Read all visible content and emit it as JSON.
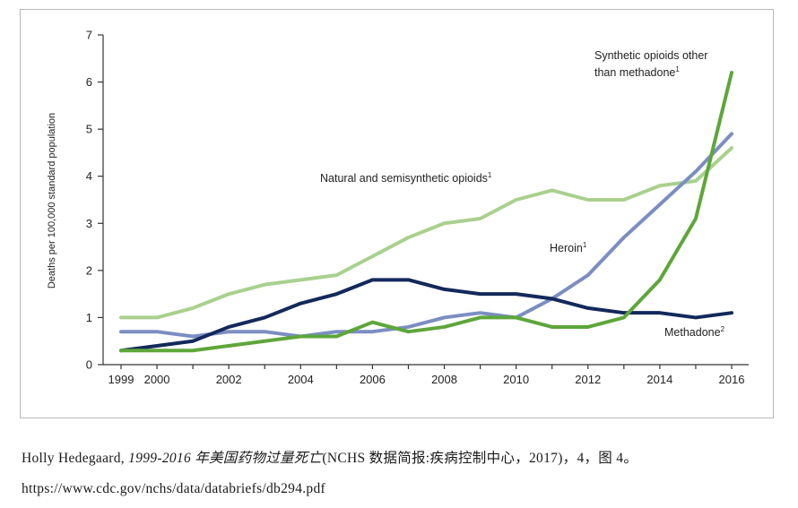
{
  "chart_data": {
    "type": "line",
    "ylabel": "Deaths per 100,000 standard population",
    "xlabel": "",
    "ylim": [
      0,
      7
    ],
    "xlim": [
      1999,
      2016
    ],
    "yticks": [
      0,
      1,
      2,
      3,
      4,
      5,
      6,
      7
    ],
    "ytick_labels": [
      "0",
      "1",
      "2",
      "3",
      "4",
      "5",
      "6",
      "7"
    ],
    "xtick_labels": [
      "1999",
      "2000",
      "2002",
      "2004",
      "2006",
      "2008",
      "2010",
      "2012",
      "2014",
      "2016"
    ],
    "xtick_values": [
      1999,
      2000,
      2002,
      2004,
      2006,
      2008,
      2010,
      2012,
      2014,
      2016
    ],
    "x": [
      1999,
      2000,
      2001,
      2002,
      2003,
      2004,
      2005,
      2006,
      2007,
      2008,
      2009,
      2010,
      2011,
      2012,
      2013,
      2014,
      2015,
      2016
    ],
    "series": [
      {
        "name": "Natural and semisynthetic opioids",
        "label_line1": "Natural and semisynthetic opioids",
        "label_sup": "1",
        "color": "#a9d18e",
        "values": [
          1.0,
          1.0,
          1.2,
          1.5,
          1.7,
          1.8,
          1.9,
          2.3,
          2.7,
          3.0,
          3.1,
          3.5,
          3.7,
          3.5,
          3.5,
          3.8,
          3.9,
          4.6
        ]
      },
      {
        "name": "Methadone",
        "label_line1": "Methadone",
        "label_sup": "2",
        "color": "#13295b",
        "values": [
          0.3,
          0.4,
          0.5,
          0.8,
          1.0,
          1.3,
          1.5,
          1.8,
          1.8,
          1.6,
          1.5,
          1.5,
          1.4,
          1.2,
          1.1,
          1.1,
          1.0,
          1.1
        ]
      },
      {
        "name": "Heroin",
        "label_line1": "Heroin",
        "label_sup": "1",
        "color": "#7b8ec2",
        "values": [
          0.7,
          0.7,
          0.6,
          0.7,
          0.7,
          0.6,
          0.7,
          0.7,
          0.8,
          1.0,
          1.1,
          1.0,
          1.4,
          1.9,
          2.7,
          3.4,
          4.1,
          4.9
        ]
      },
      {
        "name": "Synthetic opioids other than methadone",
        "label_line1": "Synthetic opioids other",
        "label_line2": "than methadone",
        "label_sup": "1",
        "color": "#5ea63a",
        "values": [
          0.3,
          0.3,
          0.3,
          0.4,
          0.5,
          0.6,
          0.6,
          0.9,
          0.7,
          0.8,
          1.0,
          1.0,
          0.8,
          0.8,
          1.0,
          1.8,
          3.1,
          6.2
        ]
      }
    ]
  },
  "caption": {
    "author": "Holly Hedegaard, ",
    "title_italic": "1999-2016 年美国药物过量死亡",
    "source": "(NCHS 数据简报:疾病控制中心，2017)，4，图 4。",
    "url": "https://www.cdc.gov/nchs/data/databriefs/db294.pdf"
  }
}
